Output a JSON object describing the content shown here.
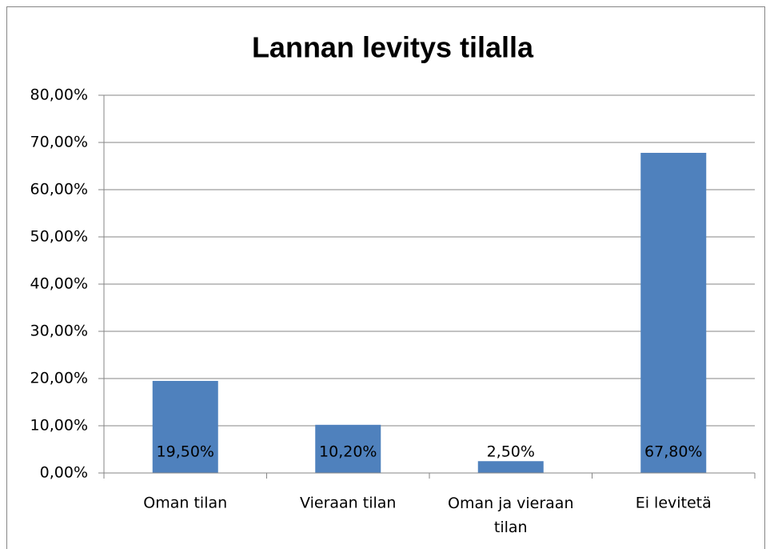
{
  "chart_data": {
    "type": "bar",
    "title": "Lannan levitys tilalla",
    "categories": [
      "Oman tilan",
      "Vieraan tilan",
      "Oman ja vieraan tilan",
      "Ei levitetä"
    ],
    "values": [
      19.5,
      10.2,
      2.5,
      67.8
    ],
    "value_labels": [
      "19,50%",
      "10,20%",
      "2,50%",
      "67,80%"
    ],
    "color": "#4f81bd",
    "ylim": [
      0,
      80
    ],
    "yticks": [
      {
        "value": 0,
        "label": "0,00%"
      },
      {
        "value": 10,
        "label": "10,00%"
      },
      {
        "value": 20,
        "label": "20,00%"
      },
      {
        "value": 30,
        "label": "30,00%"
      },
      {
        "value": 40,
        "label": "40,00%"
      },
      {
        "value": 50,
        "label": "50,00%"
      },
      {
        "value": 60,
        "label": "60,00%"
      },
      {
        "value": 70,
        "label": "70,00%"
      },
      {
        "value": 80,
        "label": "80,00%"
      }
    ],
    "grid": true
  }
}
